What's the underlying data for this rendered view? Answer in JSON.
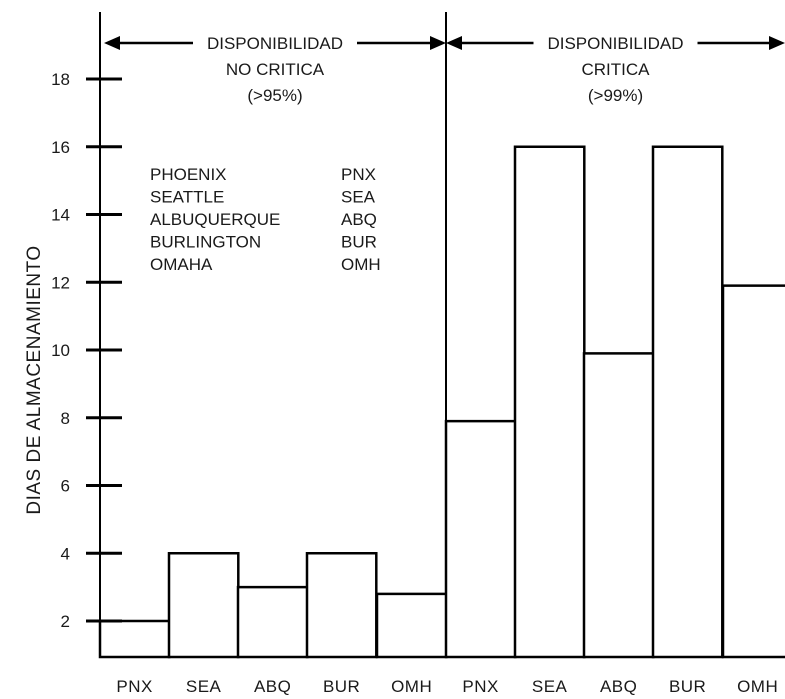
{
  "chart_data": {
    "type": "bar",
    "ylabel": "DIAS DE ALMACENAMIENTO",
    "xlabel": "",
    "ylim": [
      1,
      19.5
    ],
    "yticks": [
      2,
      4,
      6,
      8,
      10,
      12,
      14,
      16,
      18
    ],
    "categories": [
      "PNX",
      "SEA",
      "ABQ",
      "BUR",
      "OMH",
      "PNX",
      "SEA",
      "ABQ",
      "BUR",
      "OMH"
    ],
    "values": [
      2,
      4,
      3,
      4,
      2.8,
      7.9,
      16,
      9.9,
      16,
      11.9
    ],
    "groups": [
      {
        "lines": [
          "DISPONIBILIDAD",
          "NO CRITICA",
          "(>95%)"
        ],
        "count": 5
      },
      {
        "lines": [
          "DISPONIBILIDAD",
          "CRITICA",
          "(>99%)"
        ],
        "count": 5
      }
    ],
    "legend": [
      {
        "name": "PHOENIX",
        "code": "PNX"
      },
      {
        "name": "SEATTLE",
        "code": "SEA"
      },
      {
        "name": "ALBUQUERQUE",
        "code": "ABQ"
      },
      {
        "name": "BURLINGTON",
        "code": "BUR"
      },
      {
        "name": "OMAHA",
        "code": "OMH"
      }
    ],
    "grid": false,
    "legend_position": "top-left",
    "colors": {
      "bar_fill": "#ffffff",
      "bar_stroke": "#000000"
    }
  }
}
